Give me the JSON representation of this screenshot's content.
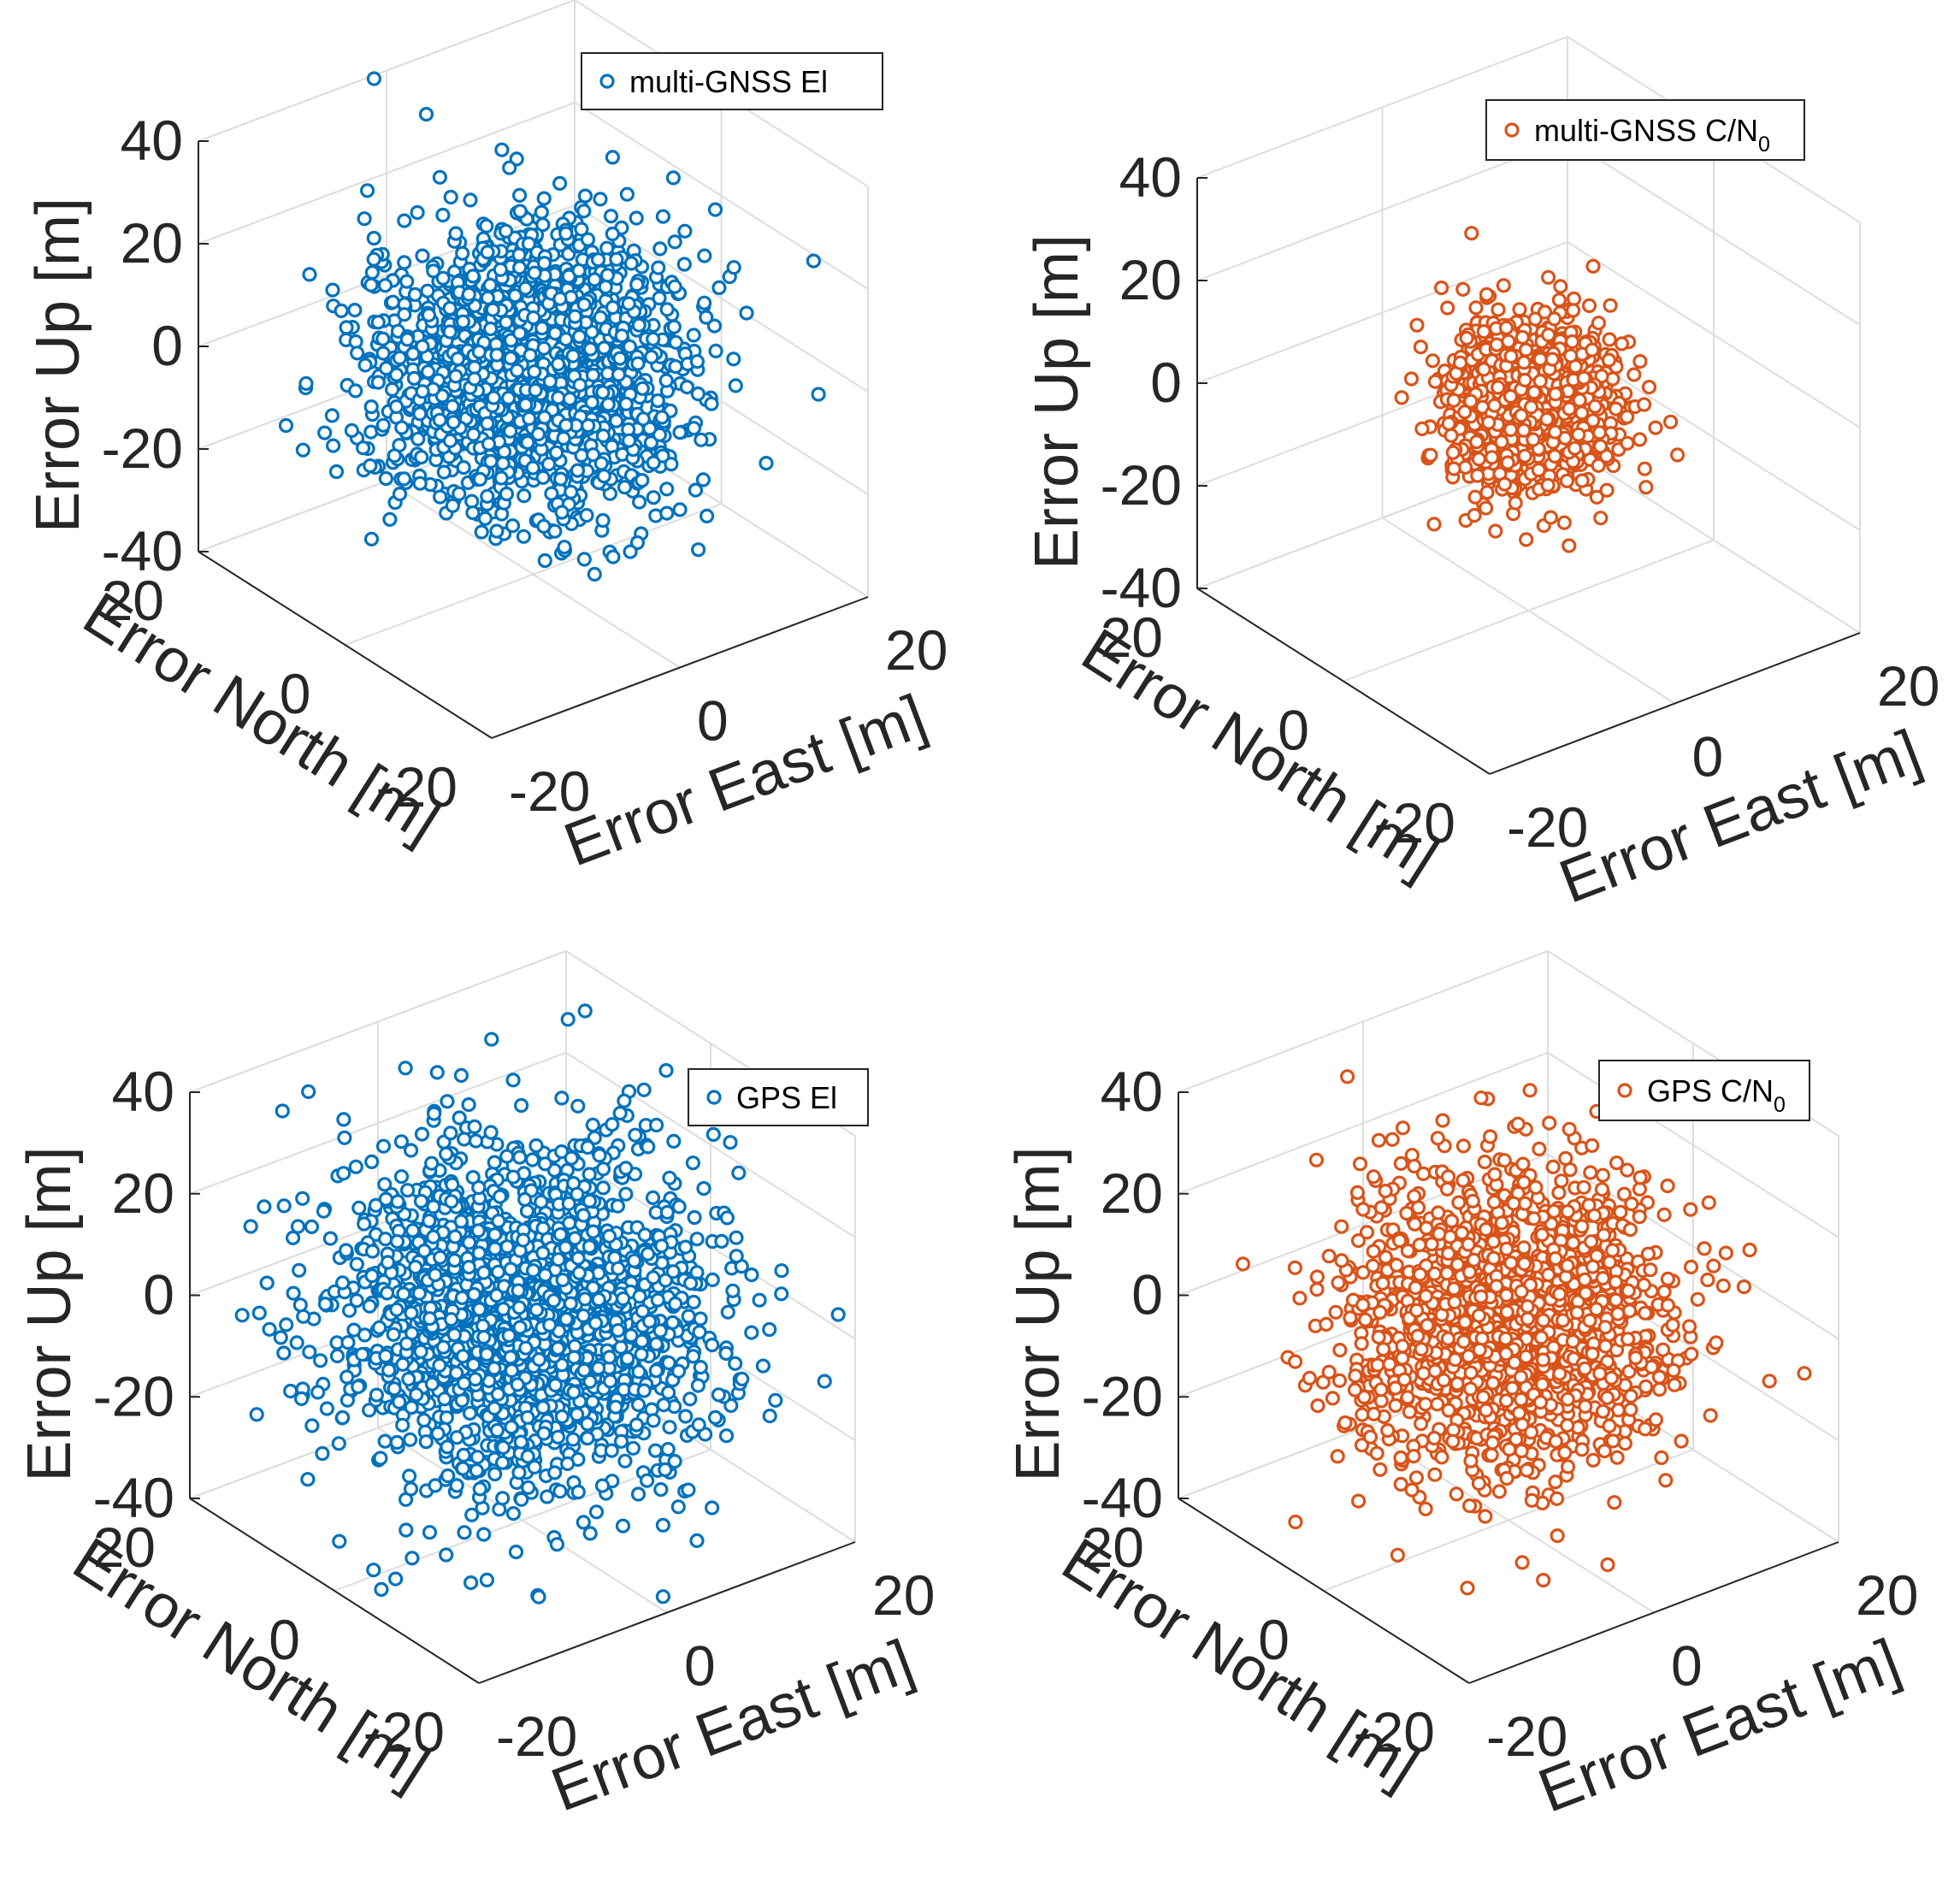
{
  "chart_data": [
    {
      "type": "scatter",
      "title": "",
      "series": [
        {
          "name": "multi-GNSS El",
          "color": "#0072BD"
        }
      ],
      "legend": {
        "text": "multi-GNSS El",
        "sub": "",
        "placement": "top-right"
      },
      "zlabel": "Error Up [m]",
      "ylabel": "Error North [m]",
      "xlabel": "Error East [m]",
      "xlim": [
        -20,
        20
      ],
      "ylim": [
        -20,
        20
      ],
      "zlim": [
        -40,
        40
      ],
      "zticks": [
        "40",
        "20",
        "0",
        "-20",
        "-40"
      ],
      "yticks": [
        "20",
        "0",
        "-20"
      ],
      "xticks": [
        "-20",
        "0",
        "20"
      ],
      "cloud": {
        "count": 1700,
        "sd_east": 6.5,
        "sd_north": 6.5,
        "sd_up": 12,
        "seed": 11
      },
      "outliers": [
        {
          "x": -6,
          "y": 14,
          "z": 48
        },
        {
          "x": 18,
          "y": -6,
          "z": 4
        },
        {
          "x": -14,
          "y": 13,
          "z": -5
        }
      ]
    },
    {
      "type": "scatter",
      "title": "",
      "series": [
        {
          "name": "multi-GNSS C/N0",
          "color": "#D95319"
        }
      ],
      "legend": {
        "text": "multi-GNSS C/N",
        "sub": "0",
        "placement": "top-right"
      },
      "zlabel": "Error Up [m]",
      "ylabel": "Error North [m]",
      "xlabel": "Error East [m]",
      "xlim": [
        -20,
        20
      ],
      "ylim": [
        -20,
        20
      ],
      "zlim": [
        -40,
        40
      ],
      "zticks": [
        "40",
        "20",
        "0",
        "-20",
        "-40"
      ],
      "yticks": [
        "20",
        "0",
        "-20"
      ],
      "xticks": [
        "-20",
        "0",
        "20"
      ],
      "cloud": {
        "count": 1300,
        "sd_east": 3.5,
        "sd_north": 3.5,
        "sd_up": 7,
        "seed": 23
      },
      "outliers": [
        {
          "x": -3,
          "y": 4,
          "z": 32
        },
        {
          "x": 2,
          "y": -3,
          "z": -26
        }
      ]
    },
    {
      "type": "scatter",
      "title": "",
      "series": [
        {
          "name": "GPS El",
          "color": "#0072BD"
        }
      ],
      "legend": {
        "text": "GPS El",
        "sub": "",
        "placement": "top-right"
      },
      "zlabel": "Error Up [m]",
      "ylabel": "Error North [m]",
      "xlabel": "Error East [m]",
      "xlim": [
        -20,
        20
      ],
      "ylim": [
        -20,
        20
      ],
      "zlim": [
        -40,
        40
      ],
      "zticks": [
        "40",
        "20",
        "0",
        "-20",
        "-40"
      ],
      "yticks": [
        "20",
        "0",
        "-20"
      ],
      "xticks": [
        "-20",
        "0",
        "20"
      ],
      "cloud": {
        "count": 2000,
        "sd_east": 8,
        "sd_north": 8,
        "sd_up": 15,
        "seed": 37
      },
      "outliers": [
        {
          "x": -12,
          "y": 14,
          "z": 40
        },
        {
          "x": 14,
          "y": -8,
          "z": -40
        }
      ]
    },
    {
      "type": "scatter",
      "title": "",
      "series": [
        {
          "name": "GPS C/N0",
          "color": "#D95319"
        }
      ],
      "legend": {
        "text": "GPS C/N",
        "sub": "0",
        "placement": "top-right"
      },
      "zlabel": "Error Up [m]",
      "ylabel": "Error North [m]",
      "xlabel": "Error East [m]",
      "xlim": [
        -20,
        20
      ],
      "ylim": [
        -20,
        20
      ],
      "zlim": [
        -40,
        40
      ],
      "zticks": [
        "40",
        "20",
        "0",
        "-20",
        "-40"
      ],
      "yticks": [
        "20",
        "0",
        "-20"
      ],
      "xticks": [
        "-20",
        "0",
        "20"
      ],
      "cloud": {
        "count": 1600,
        "sd_east": 7,
        "sd_north": 6.5,
        "sd_up": 12.5,
        "seed": 53
      },
      "outliers": [
        {
          "x": -8,
          "y": 12,
          "z": 42
        },
        {
          "x": 14,
          "y": -10,
          "z": -20
        }
      ]
    }
  ]
}
